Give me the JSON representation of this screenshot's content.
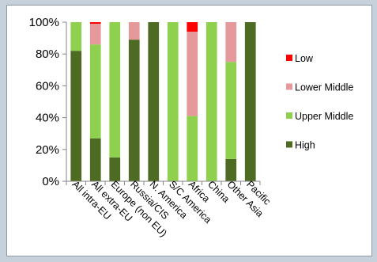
{
  "chart_data": {
    "type": "bar",
    "stacked": true,
    "stack_order": [
      "High",
      "Upper Middle",
      "Lower Middle",
      "Low"
    ],
    "categories": [
      "All intra-EU",
      "All extra-EU",
      "Europe (non EU)",
      "Russia/CIS",
      "N. America",
      "S/C America",
      "Africa",
      "China",
      "Other Asia",
      "Pacific"
    ],
    "series": [
      {
        "name": "Low",
        "color": "#ff0000",
        "values": [
          0,
          1,
          0,
          0,
          0,
          0,
          6,
          0,
          0,
          0
        ]
      },
      {
        "name": "Lower Middle",
        "color": "#e6999a",
        "values": [
          0,
          13,
          0,
          11,
          0,
          0,
          53,
          0,
          25,
          0
        ]
      },
      {
        "name": "Upper Middle",
        "color": "#8fd14f",
        "values": [
          18,
          59,
          85,
          0,
          0,
          100,
          41,
          100,
          61,
          0
        ]
      },
      {
        "name": "High",
        "color": "#4e6b23",
        "values": [
          82,
          27,
          15,
          89,
          100,
          0,
          0,
          0,
          14,
          100
        ]
      }
    ],
    "y_ticks": [
      "0%",
      "20%",
      "40%",
      "60%",
      "80%",
      "100%"
    ],
    "ylim": [
      0,
      100
    ],
    "grid": false,
    "legend_position": "right",
    "legend_order": [
      "Low",
      "Lower Middle",
      "Upper Middle",
      "High"
    ]
  }
}
